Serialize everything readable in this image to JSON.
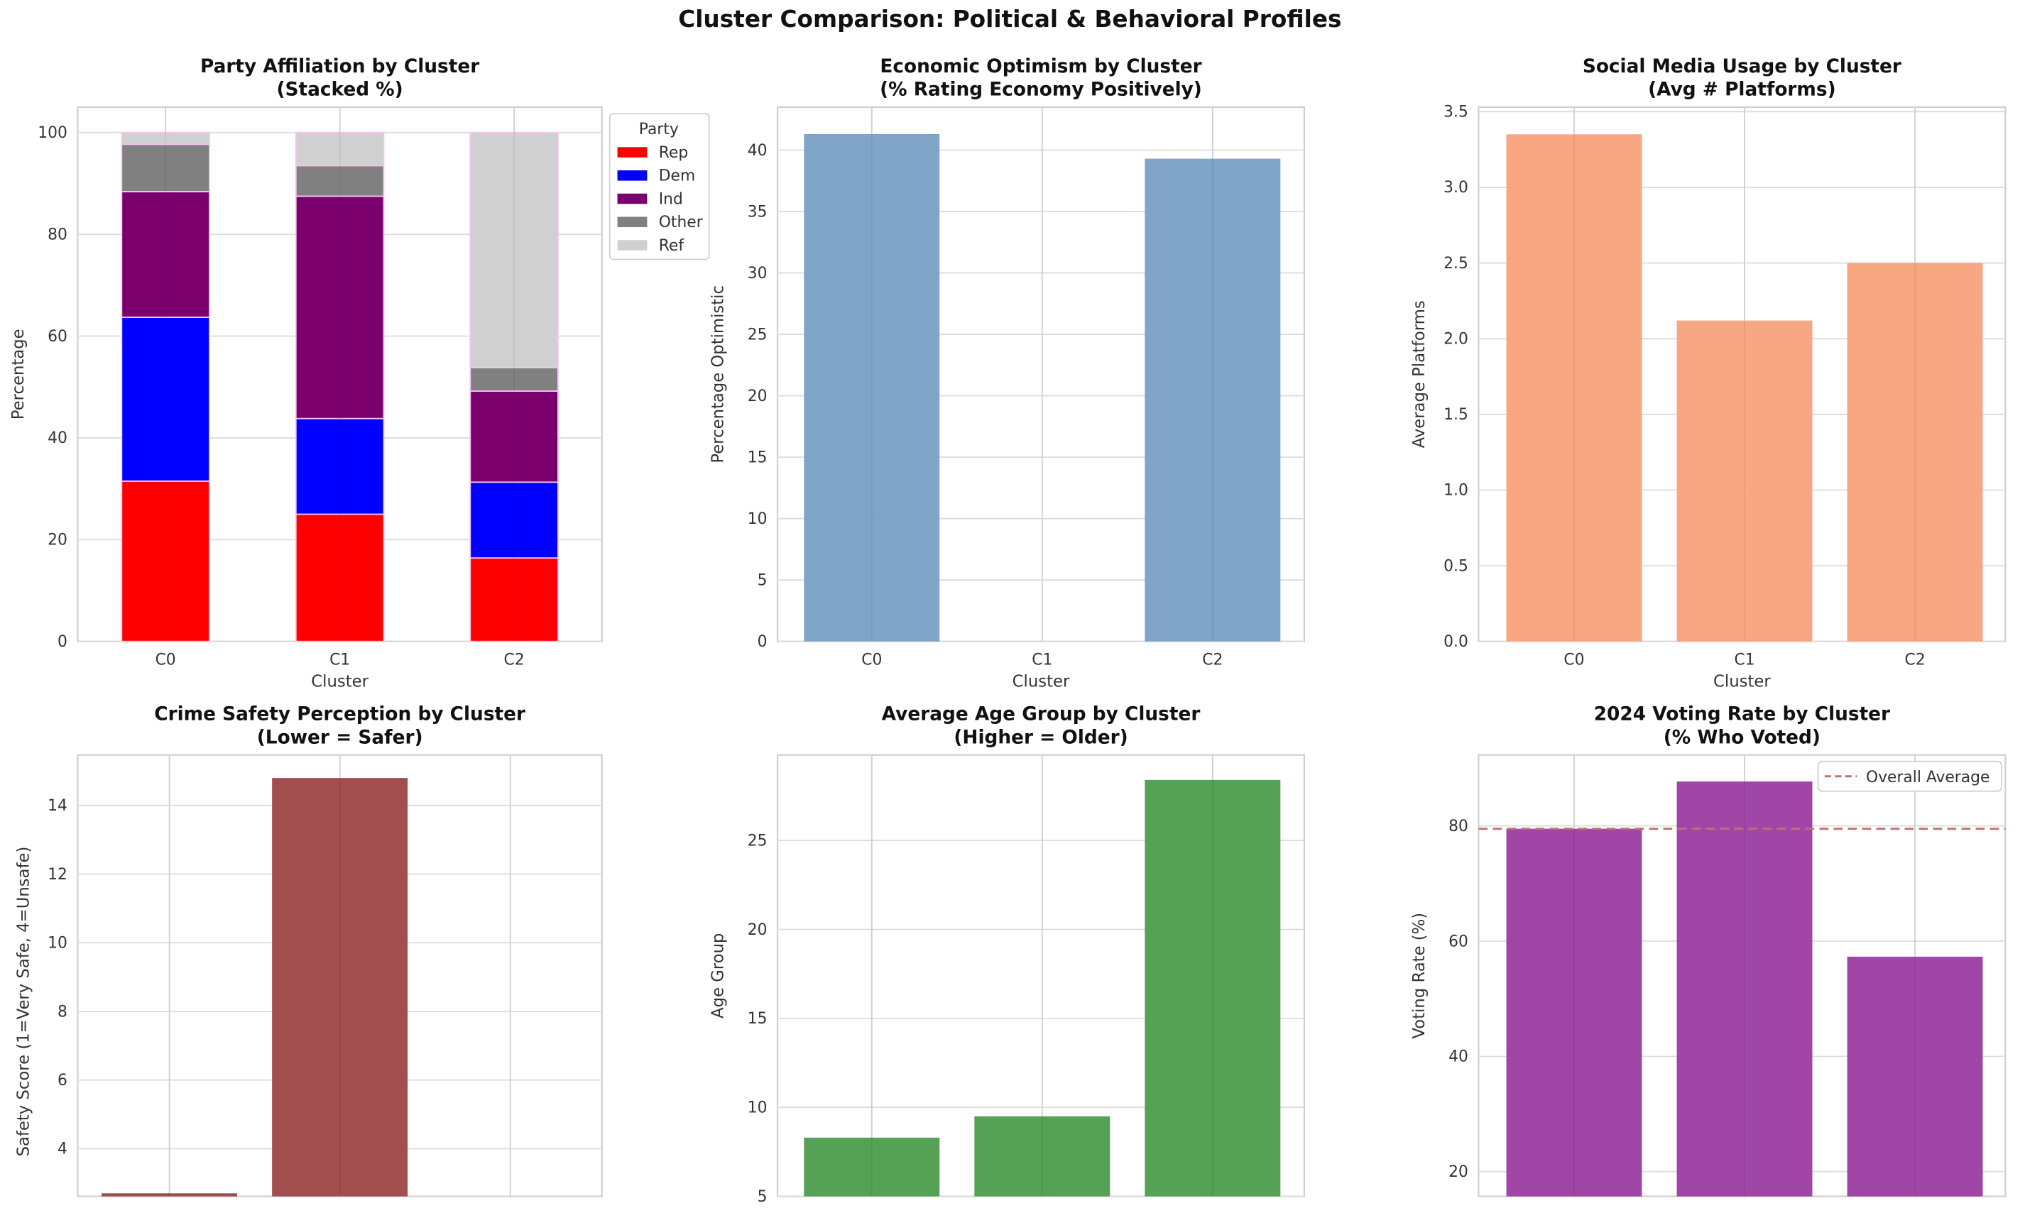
{
  "figure_title": "Cluster Comparison: Political & Behavioral Profiles",
  "chart_data": [
    {
      "id": "party",
      "type": "bar",
      "stacked": true,
      "title": "Party Affiliation by Cluster",
      "subtitle": "(Stacked %)",
      "xlabel": "Cluster",
      "ylabel": "Percentage",
      "categories": [
        "C0",
        "C1",
        "C2"
      ],
      "show_xticks": true,
      "ylim": [
        0,
        105
      ],
      "yticks": [
        0,
        20,
        40,
        60,
        80,
        100
      ],
      "grid": true,
      "legend": {
        "title": "Party",
        "placement": "outside-top-right"
      },
      "series": [
        {
          "name": "Rep",
          "color": "#ff0000",
          "values": [
            31.5,
            25.0,
            16.4
          ]
        },
        {
          "name": "Dem",
          "color": "#0000ff",
          "values": [
            32.2,
            18.8,
            14.9
          ]
        },
        {
          "name": "Ind",
          "color": "#7b006e",
          "values": [
            24.7,
            43.7,
            17.9
          ]
        },
        {
          "name": "Other",
          "color": "#808080",
          "values": [
            9.3,
            6.0,
            4.6
          ]
        },
        {
          "name": "Ref",
          "color": "#d0d0d0",
          "values": [
            2.3,
            6.5,
            46.2
          ]
        }
      ]
    },
    {
      "id": "economy",
      "type": "bar",
      "title": "Economic Optimism by Cluster",
      "subtitle": "(% Rating Economy Positively)",
      "xlabel": "Cluster",
      "ylabel": "Percentage Optimistic",
      "categories": [
        "C0",
        "C1",
        "C2"
      ],
      "show_xticks": true,
      "ylim": [
        0,
        43.5
      ],
      "yticks": [
        0,
        5,
        10,
        15,
        20,
        25,
        30,
        35,
        40
      ],
      "grid": true,
      "color": "#7aa0c6",
      "values": [
        41.3,
        0,
        39.3
      ]
    },
    {
      "id": "social",
      "type": "bar",
      "title": "Social Media Usage by Cluster",
      "subtitle": "(Avg # Platforms)",
      "xlabel": "Cluster",
      "ylabel": "Average Platforms",
      "categories": [
        "C0",
        "C1",
        "C2"
      ],
      "show_xticks": true,
      "ylim": [
        0,
        3.53
      ],
      "yticks": [
        "0.0",
        "0.5",
        "1.0",
        "1.5",
        "2.0",
        "2.5",
        "3.0",
        "3.5"
      ],
      "grid": true,
      "color": "#f9a27c",
      "values": [
        3.35,
        2.12,
        2.5
      ]
    },
    {
      "id": "crime",
      "type": "bar",
      "title": "Crime Safety Perception by Cluster",
      "subtitle": "(Lower = Safer)",
      "xlabel": "",
      "ylabel": "Safety Score (1=Very Safe, 4=Unsafe)",
      "categories": [
        "C0",
        "C1",
        "C2"
      ],
      "show_xticks": false,
      "ylim": [
        2.61,
        15.47
      ],
      "yticks": [
        4,
        6,
        8,
        10,
        12,
        14
      ],
      "grid": true,
      "color": "#9c4545",
      "values": [
        2.7,
        14.8,
        null
      ]
    },
    {
      "id": "age",
      "type": "bar",
      "title": "Average Age Group by Cluster",
      "subtitle": "(Higher = Older)",
      "xlabel": "",
      "ylabel": "Age Group",
      "categories": [
        "C0",
        "C1",
        "C2"
      ],
      "show_xticks": false,
      "ylim": [
        5,
        29.8
      ],
      "yticks": [
        5,
        10,
        15,
        20,
        25
      ],
      "grid": true,
      "color": "#4c9c4c",
      "values": [
        8.3,
        9.5,
        28.4
      ]
    },
    {
      "id": "voting",
      "type": "bar",
      "title": "2024 Voting Rate by Cluster",
      "subtitle": "(% Who Voted)",
      "xlabel": "",
      "ylabel": "Voting Rate (%)",
      "categories": [
        "C0",
        "C1",
        "C2"
      ],
      "show_xticks": false,
      "ylim": [
        15.7,
        92.3
      ],
      "yticks": [
        20,
        40,
        60,
        80
      ],
      "grid": true,
      "color": "#9b3ca2",
      "values": [
        79.5,
        87.7,
        57.3
      ],
      "reference_line": {
        "label": "Overall Average",
        "value": 79.5,
        "color": "#c27070",
        "style": "dashed"
      },
      "legend": {
        "placement": "top-right"
      }
    }
  ]
}
